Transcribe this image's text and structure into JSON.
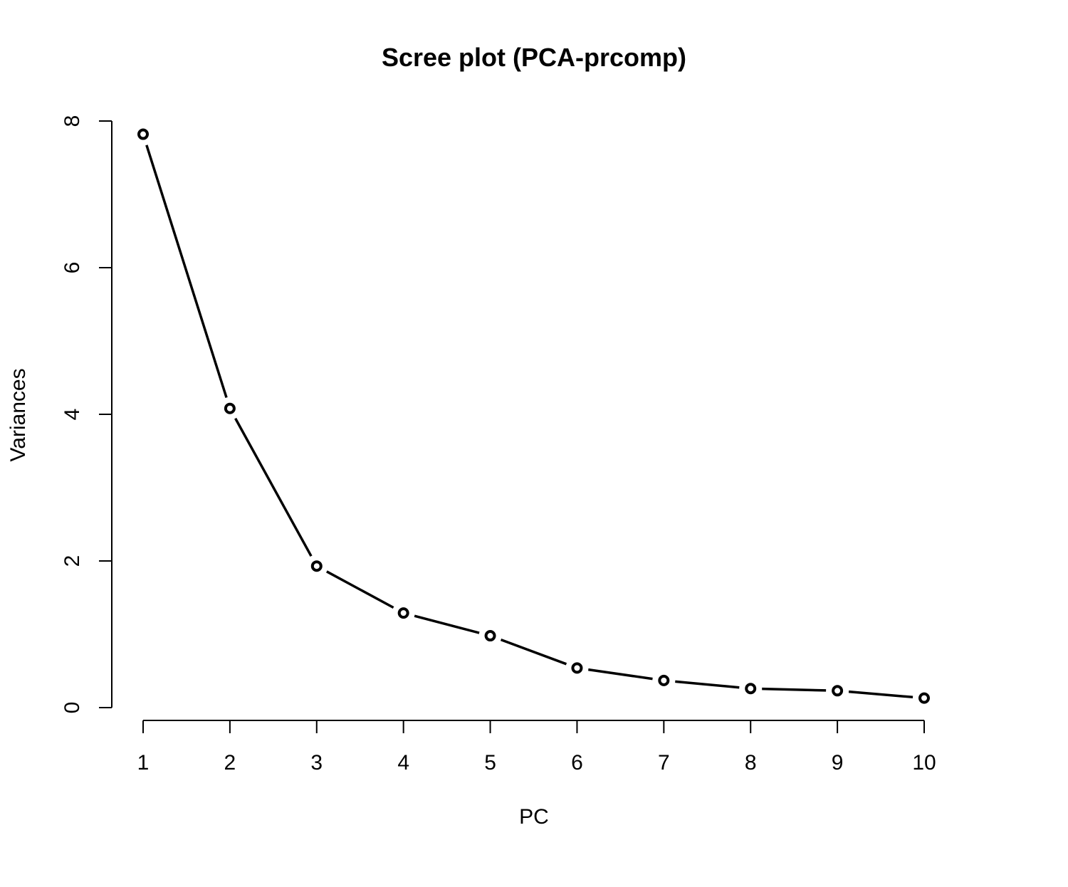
{
  "chart_data": {
    "type": "line",
    "title": "Scree plot (PCA-prcomp)",
    "xlabel": "PC",
    "ylabel": "Variances",
    "x": [
      1,
      2,
      3,
      4,
      5,
      6,
      7,
      8,
      9,
      10
    ],
    "series": [
      {
        "values": [
          7.82,
          4.08,
          1.93,
          1.29,
          0.98,
          0.54,
          0.37,
          0.26,
          0.23,
          0.13
        ]
      }
    ],
    "xlim": [
      1,
      10
    ],
    "ylim": [
      0,
      8
    ],
    "x_ticks": [
      "1",
      "2",
      "3",
      "4",
      "5",
      "6",
      "7",
      "8",
      "9",
      "10"
    ],
    "y_ticks": [
      "0",
      "2",
      "4",
      "6",
      "8"
    ],
    "grid": false,
    "markers": "open-circle",
    "line_color": "#000000"
  }
}
